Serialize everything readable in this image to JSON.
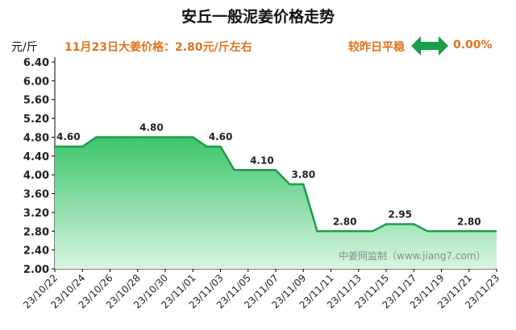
{
  "header": {
    "title": "安丘一般泥姜价格走势",
    "unit": "元/斤",
    "price_line": "11月23日大姜价格：2.80元/斤左右",
    "change_text": "较昨日平稳",
    "change_value": "0.00%"
  },
  "watermark": "中姜网监制（www.jiang7.com）",
  "colors": {
    "line": "#1a9e4a",
    "fill_top": "#3cc56b",
    "fill_bottom": "#d9f4e1",
    "accent": "#e0731c"
  },
  "icons": {
    "change_indicator": "double-arrow-icon"
  },
  "chart_data": {
    "type": "area",
    "title": "安丘一般泥姜价格走势",
    "xlabel": "",
    "ylabel": "元/斤",
    "ylim": [
      2.0,
      6.4
    ],
    "yticks": [
      "2.00",
      "2.40",
      "2.80",
      "3.20",
      "3.60",
      "4.00",
      "4.40",
      "4.80",
      "5.20",
      "5.60",
      "6.00",
      "6.40"
    ],
    "x_tick_labels": [
      "23/10/22",
      "23/10/24",
      "23/10/26",
      "23/10/28",
      "23/10/30",
      "23/11/01",
      "23/11/03",
      "23/11/05",
      "23/11/07",
      "23/11/09",
      "23/11/11",
      "23/11/13",
      "23/11/15",
      "23/11/17",
      "23/11/19",
      "23/11/21",
      "23/11/23"
    ],
    "x": [
      "23/10/22",
      "23/10/23",
      "23/10/24",
      "23/10/25",
      "23/10/26",
      "23/10/27",
      "23/10/28",
      "23/10/29",
      "23/10/30",
      "23/10/31",
      "23/11/01",
      "23/11/02",
      "23/11/03",
      "23/11/04",
      "23/11/05",
      "23/11/06",
      "23/11/07",
      "23/11/08",
      "23/11/09",
      "23/11/10",
      "23/11/11",
      "23/11/12",
      "23/11/13",
      "23/11/14",
      "23/11/15",
      "23/11/16",
      "23/11/17",
      "23/11/18",
      "23/11/19",
      "23/11/20",
      "23/11/21",
      "23/11/22",
      "23/11/23"
    ],
    "series": [
      {
        "values": [
          4.6,
          4.6,
          4.6,
          4.8,
          4.8,
          4.8,
          4.8,
          4.8,
          4.8,
          4.8,
          4.8,
          4.6,
          4.6,
          4.1,
          4.1,
          4.1,
          4.1,
          3.8,
          3.8,
          2.8,
          2.8,
          2.8,
          2.8,
          2.8,
          2.95,
          2.95,
          2.95,
          2.8,
          2.8,
          2.8,
          2.8,
          2.8,
          2.8
        ]
      }
    ],
    "data_labels": [
      {
        "index": 0,
        "text": "4.60"
      },
      {
        "index": 7,
        "text": "4.80"
      },
      {
        "index": 12,
        "text": "4.60"
      },
      {
        "index": 15,
        "text": "4.10"
      },
      {
        "index": 18,
        "text": "3.80"
      },
      {
        "index": 21,
        "text": "2.80"
      },
      {
        "index": 25,
        "text": "2.95"
      },
      {
        "index": 30,
        "text": "2.80"
      }
    ],
    "grid": false
  }
}
